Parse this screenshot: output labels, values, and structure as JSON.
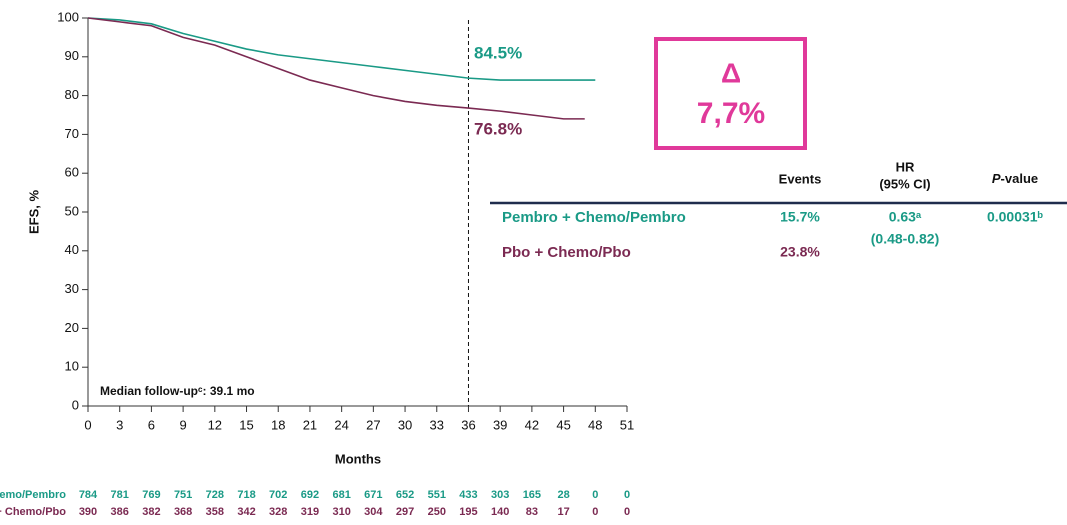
{
  "chart_data": {
    "type": "line",
    "x_label": "Months",
    "y_label": "EFS, %",
    "x": [
      0,
      3,
      6,
      9,
      12,
      15,
      18,
      21,
      24,
      27,
      30,
      33,
      36,
      39,
      42,
      45,
      47,
      48
    ],
    "series": [
      {
        "name": "Pembro + Chemo/Pembro",
        "color": "#1a9a86",
        "end_label": "84.5%",
        "values": [
          100,
          99.5,
          98.5,
          96,
          94,
          92,
          90.5,
          89.5,
          88.5,
          87.5,
          86.5,
          85.5,
          84.5,
          84,
          84,
          84,
          84,
          84
        ],
        "at_risk": [
          784,
          781,
          769,
          751,
          728,
          718,
          702,
          692,
          681,
          671,
          652,
          551,
          433,
          303,
          165,
          28,
          0,
          0
        ]
      },
      {
        "name": "Pbo + Chemo/Pbo",
        "color": "#7b2a52",
        "end_label": "76.8%",
        "values": [
          100,
          99,
          98,
          95,
          93,
          90,
          87,
          84,
          82,
          80,
          78.5,
          77.5,
          76.8,
          76,
          75,
          74,
          74,
          null
        ],
        "at_risk": [
          390,
          386,
          382,
          368,
          358,
          342,
          328,
          319,
          310,
          304,
          297,
          250,
          195,
          140,
          83,
          17,
          0,
          0
        ]
      }
    ],
    "xlim": [
      0,
      51
    ],
    "xticks": [
      0,
      3,
      6,
      9,
      12,
      15,
      18,
      21,
      24,
      27,
      30,
      33,
      36,
      39,
      42,
      45,
      48,
      51
    ],
    "ylim": [
      0,
      100
    ],
    "yticks": [
      0,
      10,
      20,
      30,
      40,
      50,
      60,
      70,
      80,
      90,
      100
    ],
    "reference_x": 36,
    "median_note": "Median follow-upᶜ:  39.1 mo",
    "delta_symbol": "Δ",
    "delta_value": "7,7%",
    "table": {
      "events_header": "Events",
      "hr_header": "HR",
      "ci_header": "(95% CI)",
      "p_header_italic": "P",
      "p_header_rest": "-value",
      "rows": [
        {
          "events": "15.7%",
          "hr": "0.63ᵃ",
          "ci": "(0.48-0.82)",
          "p": "0.00031ᵇ"
        },
        {
          "events": "23.8%"
        }
      ]
    }
  }
}
